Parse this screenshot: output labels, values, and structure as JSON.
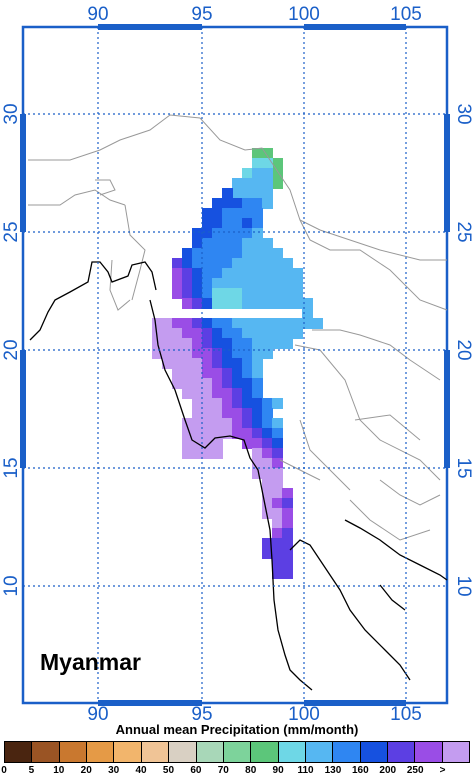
{
  "map": {
    "country_label": "Myanmar",
    "lon_ticks": [
      "90",
      "95",
      "100",
      "105"
    ],
    "lat_ticks": [
      "30",
      "25",
      "20",
      "15",
      "10"
    ],
    "frame_color": "#1a5fc8",
    "grid_color": "#1a5fc8"
  },
  "legend": {
    "title": "Annual mean Precipitation (mm/month)",
    "labels": [
      "0",
      "5",
      "10",
      "20",
      "30",
      "40",
      "50",
      "60",
      "70",
      "80",
      "90",
      "110",
      "130",
      "160",
      "200",
      "250",
      ">"
    ],
    "colors": [
      "#4a2510",
      "#9a5424",
      "#c9782f",
      "#e59a46",
      "#f2b56c",
      "#f0c496",
      "#d9d0c3",
      "#a8d7b8",
      "#7dd39b",
      "#5cc67a",
      "#6ed7e6",
      "#56b7f2",
      "#2f86f2",
      "#1651e0",
      "#5c3fe3",
      "#9a4de6",
      "#c49cf0"
    ]
  }
}
